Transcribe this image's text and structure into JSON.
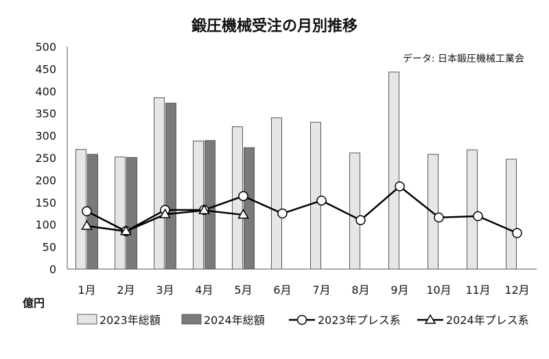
{
  "chart_data": {
    "type": "bar",
    "title": "鍛圧機械受注の月別推移",
    "source_note": "データ: 日本鍛圧機械工業会",
    "ylabel": "億円",
    "ylim": [
      0,
      500
    ],
    "yticks": [
      "0",
      "50",
      "100",
      "150",
      "200",
      "250",
      "300",
      "350",
      "400",
      "450",
      "500"
    ],
    "categories": [
      "1月",
      "2月",
      "3月",
      "4月",
      "5月",
      "6月",
      "7月",
      "8月",
      "9月",
      "10月",
      "11月",
      "12月"
    ],
    "series": [
      {
        "name": "2023年総額",
        "kind": "bar",
        "color": "#e6e6e6",
        "values": [
          269,
          252,
          385,
          288,
          320,
          340,
          330,
          261,
          443,
          258,
          268,
          247
        ]
      },
      {
        "name": "2024年総額",
        "kind": "bar",
        "color": "#7a7a7a",
        "values": [
          258,
          251,
          373,
          289,
          273,
          null,
          null,
          null,
          null,
          null,
          null,
          null
        ]
      },
      {
        "name": "2023年プレス系",
        "kind": "line",
        "marker": "circle",
        "values": [
          130,
          85,
          133,
          133,
          164,
          125,
          154,
          110,
          186,
          116,
          119,
          81
        ]
      },
      {
        "name": "2024年プレス系",
        "kind": "line",
        "marker": "triangle",
        "values": [
          97,
          85,
          123,
          132,
          122,
          null,
          null,
          null,
          null,
          null,
          null,
          null
        ]
      }
    ],
    "grid": false,
    "legend": "bottom"
  }
}
